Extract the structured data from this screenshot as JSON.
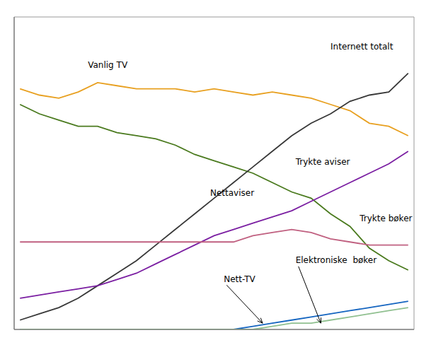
{
  "chart_data": {
    "type": "line",
    "x": [
      0,
      1,
      2,
      3,
      4,
      5,
      6,
      7,
      8,
      9,
      10,
      11,
      12,
      13,
      14,
      15,
      16,
      17,
      18,
      19,
      20
    ],
    "xlim": [
      -0.3,
      20.3
    ],
    "ylim": [
      0,
      100
    ],
    "grid": false,
    "tick_labels": false,
    "series": [
      {
        "name": "Vanlig TV",
        "color": "#e8a020",
        "values": [
          77,
          75,
          74,
          76,
          79,
          78,
          77,
          77,
          77,
          76,
          77,
          76,
          75,
          76,
          75,
          74,
          72,
          70,
          66,
          65,
          62
        ]
      },
      {
        "name": "Trykte aviser",
        "color": "#4a7a1e",
        "values": [
          72,
          69,
          67,
          65,
          65,
          63,
          62,
          61,
          59,
          56,
          54,
          52,
          50,
          47,
          44,
          42,
          37,
          33,
          26,
          22,
          19
        ]
      },
      {
        "name": "Internett totalt",
        "color": "#383838",
        "values": [
          3,
          5,
          7,
          10,
          14,
          18,
          22,
          27,
          32,
          37,
          42,
          47,
          52,
          57,
          62,
          66,
          69,
          73,
          75,
          76,
          82
        ]
      },
      {
        "name": "Nettaviser",
        "color": "#7b1fa2",
        "values": [
          10,
          11,
          12,
          13,
          14,
          16,
          18,
          21,
          24,
          27,
          30,
          32,
          34,
          36,
          38,
          41,
          44,
          47,
          50,
          53,
          57
        ]
      },
      {
        "name": "Trykte bøker",
        "color": "#c06080",
        "values": [
          28,
          28,
          28,
          28,
          28,
          28,
          28,
          28,
          28,
          28,
          28,
          28,
          30,
          31,
          32,
          31,
          29,
          28,
          27,
          27,
          27
        ]
      },
      {
        "name": "Nett-TV",
        "color": "#1565c0",
        "values": [
          0,
          0,
          0,
          0,
          0,
          0,
          0,
          0,
          0,
          0,
          0,
          0,
          1,
          2,
          3,
          4,
          5,
          6,
          7,
          8,
          9
        ]
      },
      {
        "name": "Elektroniske bøker",
        "color": "#90c090",
        "values": [
          0,
          0,
          0,
          0,
          0,
          0,
          0,
          0,
          0,
          0,
          0,
          0,
          0,
          1,
          2,
          2,
          3,
          4,
          5,
          6,
          7
        ]
      }
    ],
    "annotations": [
      {
        "text": "Vanlig TV",
        "x": 3.5,
        "y": 83
      },
      {
        "text": "Internett totalt",
        "x": 16.0,
        "y": 89
      },
      {
        "text": "Trykte aviser",
        "x": 14.2,
        "y": 52
      },
      {
        "text": "Nettaviser",
        "x": 9.8,
        "y": 42
      },
      {
        "text": "Trykte bøker",
        "x": 17.5,
        "y": 34
      },
      {
        "text": "Nett-TV",
        "x": 10.5,
        "y": 16,
        "arrow_x": 12.5,
        "arrow_y": 2
      },
      {
        "text": "Elektroniske  bøker",
        "x": 14.2,
        "y": 22,
        "arrow_x": 15.5,
        "arrow_y": 2
      }
    ]
  }
}
